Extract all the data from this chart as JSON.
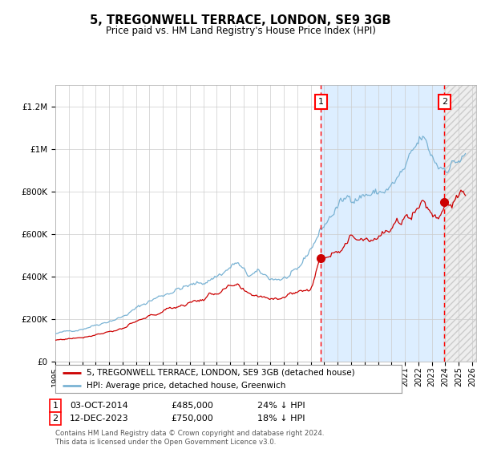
{
  "title": "5, TREGONWELL TERRACE, LONDON, SE9 3GB",
  "subtitle": "Price paid vs. HM Land Registry's House Price Index (HPI)",
  "legend_line1": "5, TREGONWELL TERRACE, LONDON, SE9 3GB (detached house)",
  "legend_line2": "HPI: Average price, detached house, Greenwich",
  "footer": "Contains HM Land Registry data © Crown copyright and database right 2024.\nThis data is licensed under the Open Government Licence v3.0.",
  "annotation1": {
    "label": "1",
    "date_str": "03-OCT-2014",
    "price": 485000,
    "hpi_pct": "24% ↓ HPI",
    "x_year": 2014.75
  },
  "annotation2": {
    "label": "2",
    "date_str": "12-DEC-2023",
    "price": 750000,
    "hpi_pct": "18% ↓ HPI",
    "x_year": 2023.94
  },
  "hpi_color": "#7ab3d4",
  "price_color": "#cc0000",
  "background_color": "#ffffff",
  "shaded_region_color": "#ddeeff",
  "ylim": [
    0,
    1300000
  ],
  "xlim_start": 1995.0,
  "xlim_end": 2026.3,
  "yticks": [
    0,
    200000,
    400000,
    600000,
    800000,
    1000000,
    1200000
  ]
}
